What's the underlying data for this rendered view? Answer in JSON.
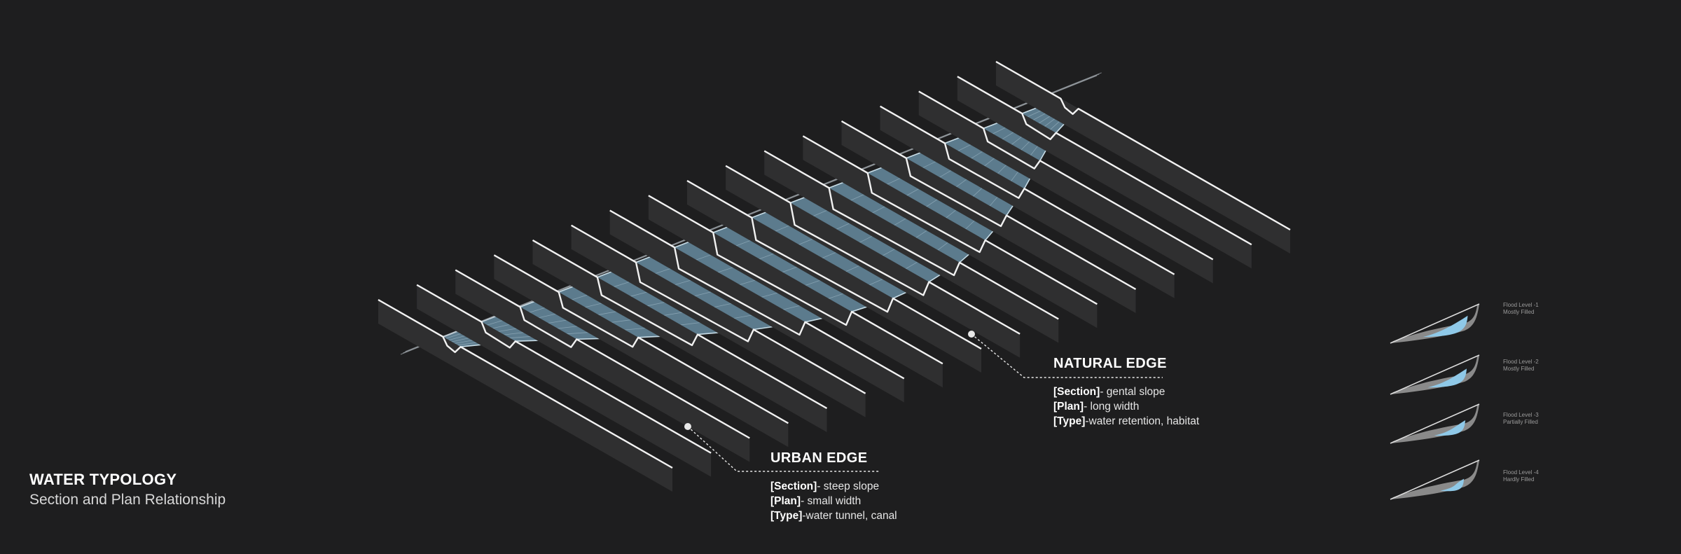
{
  "title": {
    "main": "WATER TYPOLOGY",
    "subtitle": "Section and Plan Relationship"
  },
  "callouts": {
    "natural": {
      "title": "NATURAL EDGE",
      "section_key": "[Section]",
      "section_value": "- gental slope",
      "plan_key": "[Plan]",
      "plan_value": "- long width",
      "type_key": "[Type]",
      "type_value": "-water retention, habitat"
    },
    "urban": {
      "title": "URBAN EDGE",
      "section_key": "[Section]",
      "section_value": "- steep slope",
      "plan_key": "[Plan]",
      "plan_value": "- small width",
      "type_key": "[Type]",
      "type_value": "-water tunnel, canal"
    }
  },
  "legend": [
    {
      "level": "Flood Level -1",
      "state": "Mostly Filled",
      "fill": 0.85
    },
    {
      "level": "Flood Level -2",
      "state": "Mostly Filled",
      "fill": 0.7
    },
    {
      "level": "Flood Level -3",
      "state": "Partially Filled",
      "fill": 0.5
    },
    {
      "level": "Flood Level -4",
      "state": "Hardly Filled",
      "fill": 0.3
    }
  ],
  "colors": {
    "background": "#1e1e1f",
    "water": "#8fc9e8",
    "fin_face": "#2f2f30",
    "edge_line": "#f2f2f2"
  }
}
